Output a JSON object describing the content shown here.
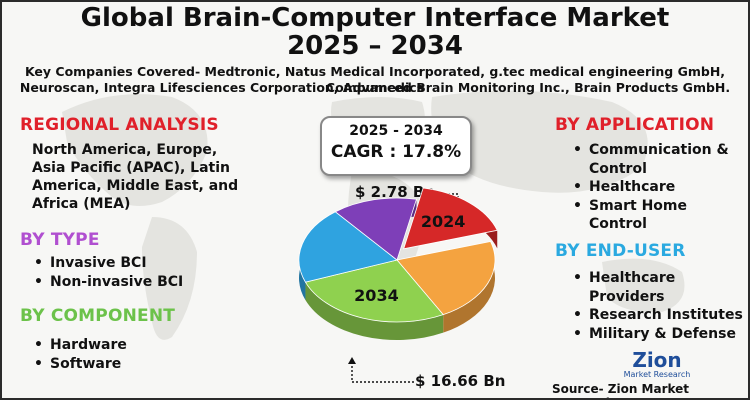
{
  "title_line1": "Global Brain-Computer Interface Market",
  "title_line2": "2025 – 2034",
  "companies_line1": "Key Companies Covered- Medtronic, Natus Medical Incorporated, g.tec medical engineering GmbH, Compumedics",
  "companies_line2": "Neuroscan, Integra Lifesciences Corporation, Advanced Brain Monitoring Inc., Brain Products GmbH.",
  "regional": {
    "heading": "REGIONAL ANALYSIS",
    "lines": [
      "North America, Europe,",
      "Asia Pacific (APAC), Latin",
      "America, Middle East, and",
      "Africa (MEA)"
    ]
  },
  "by_type": {
    "heading": "BY TYPE",
    "items": [
      "Invasive BCI",
      "Non-invasive BCI"
    ]
  },
  "by_component": {
    "heading": "BY COMPONENT",
    "items": [
      "Hardware",
      "Software"
    ]
  },
  "by_application": {
    "heading": "BY APPLICATION",
    "items": [
      "Communication &",
      "Control",
      "Healthcare",
      "Smart Home Control"
    ]
  },
  "by_end_user": {
    "heading": "BY END-USER",
    "items": [
      "Healthcare Providers",
      "Research Institutes",
      "Military & Defense"
    ]
  },
  "cagr": {
    "period": "2025 - 2034",
    "value": "CAGR : 17.8%"
  },
  "chart_data": {
    "type": "pie",
    "annotations": [
      {
        "year": "2024",
        "value_label": "$ 2.78 Bn",
        "value": 2.78
      },
      {
        "year": "2034",
        "value_label": "$ 16.66 Bn",
        "value": 16.66
      }
    ],
    "slices": [
      {
        "label": "2024",
        "value": 17,
        "color": "#d62828"
      },
      {
        "label": "",
        "value": 22,
        "color": "#f4a340"
      },
      {
        "label": "2034",
        "value": 27,
        "color": "#8fd14f"
      },
      {
        "label": "",
        "value": 20,
        "color": "#2fa3e0"
      },
      {
        "label": "",
        "value": 14,
        "color": "#7e3fb8"
      }
    ]
  },
  "colors": {
    "regional": "#e0202a",
    "type": "#b04fd0",
    "component": "#6cc24a",
    "application": "#e0202a",
    "end_user": "#2aa9e0"
  },
  "logo": {
    "word": "Zion",
    "sub": "Market Research"
  },
  "source": "Source- Zion Market Research"
}
